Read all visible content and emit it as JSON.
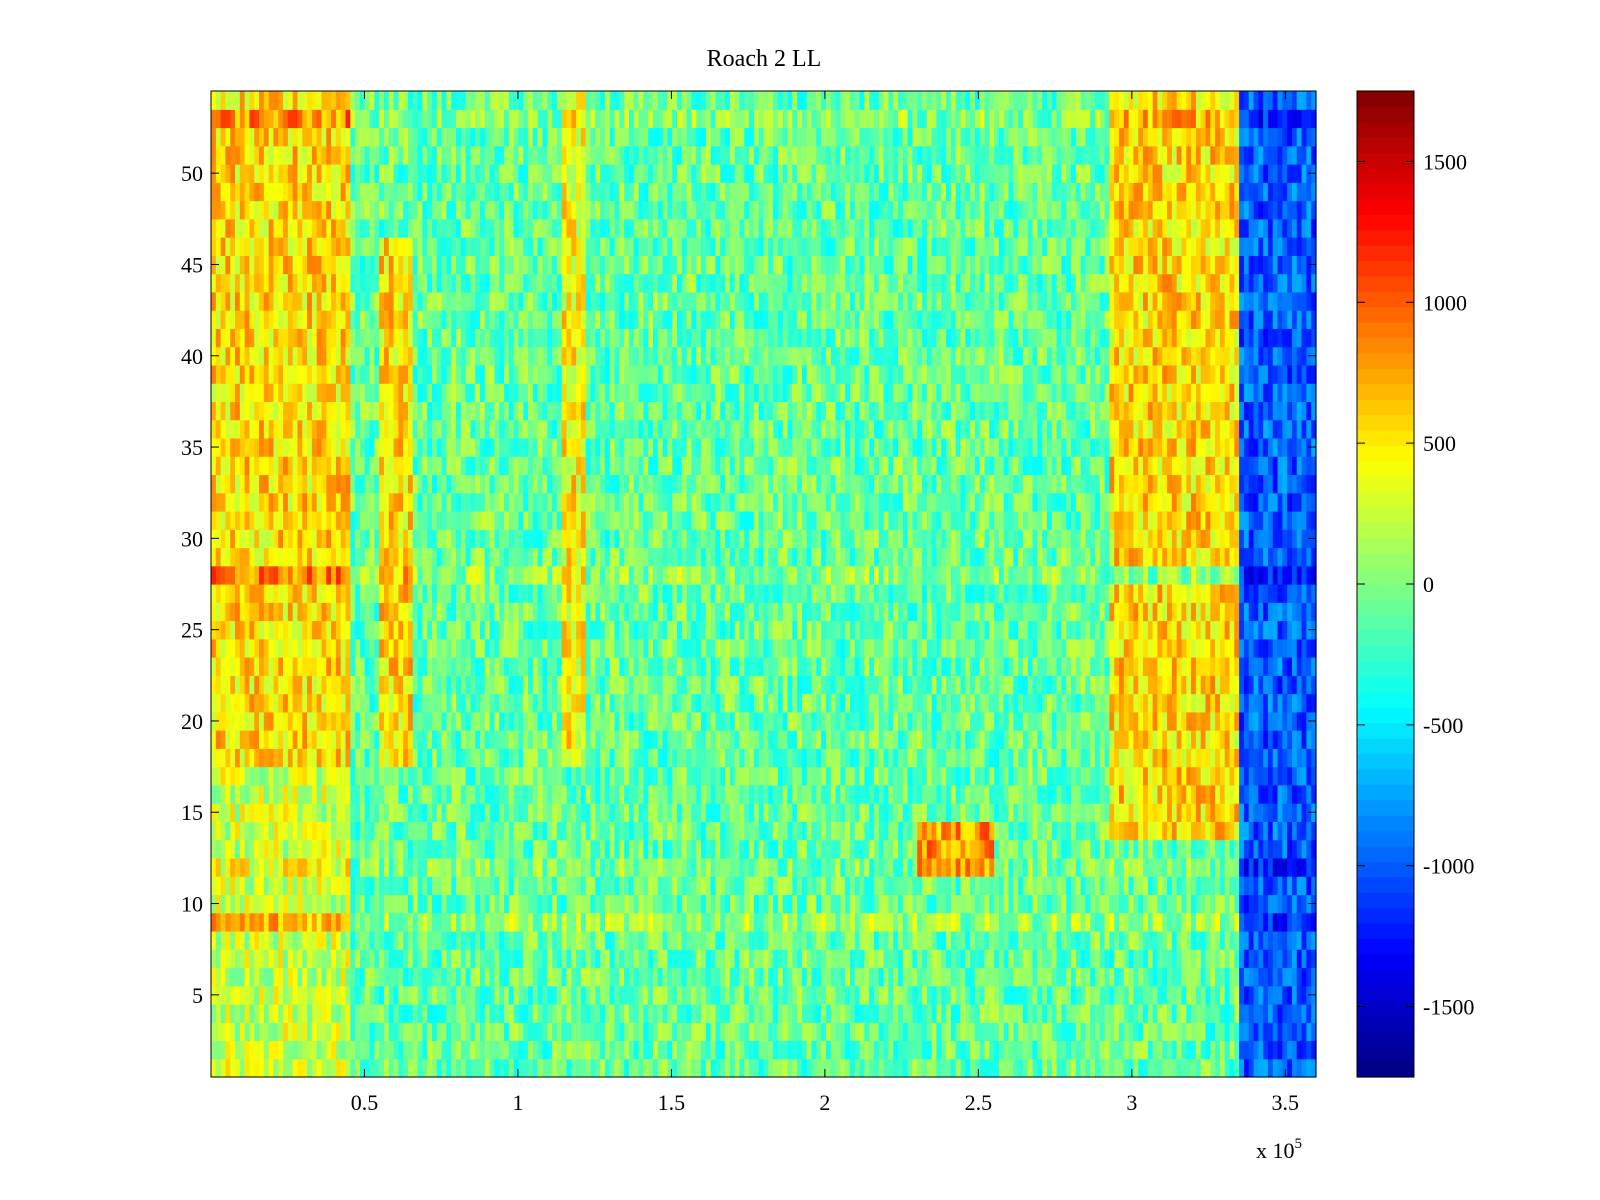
{
  "chart_data": {
    "type": "heatmap",
    "title": "Roach 2 LL",
    "xlabel": "",
    "ylabel": "",
    "x_multiplier_label": {
      "base": "x 10",
      "exponent": "5"
    },
    "xlim": [
      0,
      3.6
    ],
    "ylim": [
      0.5,
      54.5
    ],
    "x_ticks": [
      0.5,
      1,
      1.5,
      2,
      2.5,
      3,
      3.5
    ],
    "x_tick_labels": [
      "0.5",
      "1",
      "1.5",
      "2",
      "2.5",
      "3",
      "3.5"
    ],
    "y_ticks": [
      5,
      10,
      15,
      20,
      25,
      30,
      35,
      40,
      45,
      50
    ],
    "y_tick_labels": [
      "5",
      "10",
      "15",
      "20",
      "25",
      "30",
      "35",
      "40",
      "45",
      "50"
    ],
    "rows": 54,
    "colorbar": {
      "clim": [
        -1750,
        1750
      ],
      "ticks": [
        -1500,
        -1000,
        -500,
        0,
        500,
        1000,
        1500
      ],
      "tick_labels": [
        "-1500",
        "-1000",
        "-500",
        "0",
        "500",
        "1000",
        "1500"
      ],
      "colormap": "jet"
    },
    "value_regions": [
      {
        "x": [
          0.0,
          0.45
        ],
        "rows": [
          18,
          54
        ],
        "mean": 550
      },
      {
        "x": [
          0.0,
          0.45
        ],
        "rows": [
          1,
          17
        ],
        "mean": 250
      },
      {
        "x": [
          0.55,
          0.65
        ],
        "rows": [
          18,
          46
        ],
        "mean": 550
      },
      {
        "x": [
          1.15,
          1.22
        ],
        "rows": [
          18,
          54
        ],
        "mean": 450
      },
      {
        "x": [
          2.3,
          2.55
        ],
        "rows": [
          12,
          14
        ],
        "mean": 800
      },
      {
        "x": [
          2.92,
          3.35
        ],
        "rows": [
          29,
          54
        ],
        "mean": 550
      },
      {
        "x": [
          2.92,
          3.35
        ],
        "rows": [
          14,
          27
        ],
        "mean": 550
      },
      {
        "x": [
          3.35,
          3.6
        ],
        "rows": [
          1,
          54
        ],
        "mean": -1000
      }
    ],
    "row_offsets": [
      {
        "row": 9,
        "offset": 450
      },
      {
        "row": 28,
        "offset": 350
      },
      {
        "row": 12,
        "offset": 150
      },
      {
        "row": 53,
        "offset": 300
      }
    ],
    "background_mean": -100
  }
}
